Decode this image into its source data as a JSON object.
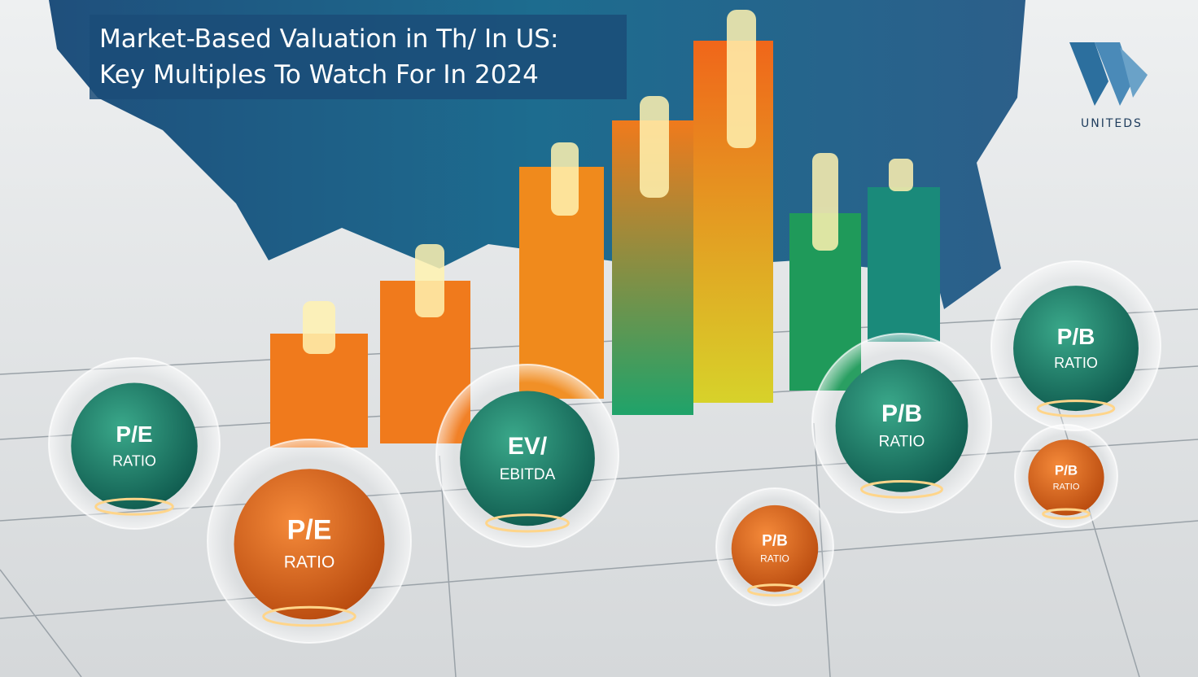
{
  "header": {
    "title_lines": [
      "Market-Based Valuation in Th/ In US:",
      "Key Multiples To Watch For In 2024"
    ]
  },
  "logo": {
    "text": "UNITEDS"
  },
  "spheres": [
    {
      "top": "P/E",
      "bottom": "RATIO"
    },
    {
      "top": "P/E",
      "bottom": "RATIO"
    },
    {
      "top": "EV/",
      "bottom": "EBITDA"
    },
    {
      "top": "P/B",
      "bottom": "RATIO"
    },
    {
      "top": "P/B",
      "bottom": "RATIO"
    },
    {
      "top": "P/B",
      "bottom": "RATIO"
    },
    {
      "top": "P/B",
      "bottom": "RATIO"
    }
  ]
}
